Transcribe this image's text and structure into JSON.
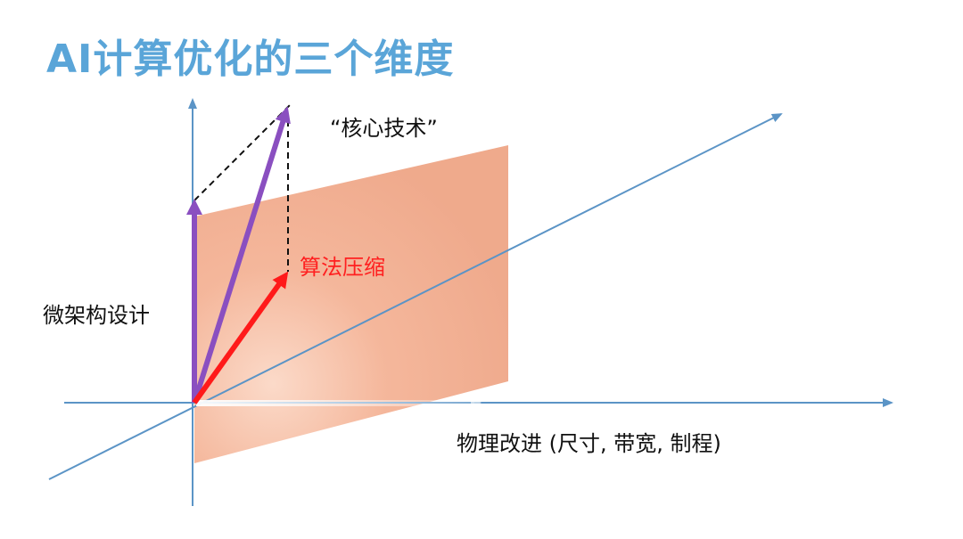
{
  "title": "AI计算优化的三个维度",
  "labels": {
    "core_tech": "“核心技术”",
    "algorithm": "算法压缩",
    "microarch": "微架构设计",
    "physical": "物理改进 (尺寸, 带宽, 制程)"
  },
  "colors": {
    "title": "#5aa5d8",
    "axis": "#5b94c6",
    "plane": "#f2a88a",
    "purple_arrow": "#8a4fc0",
    "red_arrow": "#ff1a1a",
    "algorithm_text": "#ff2020",
    "dashed": "#111111"
  }
}
